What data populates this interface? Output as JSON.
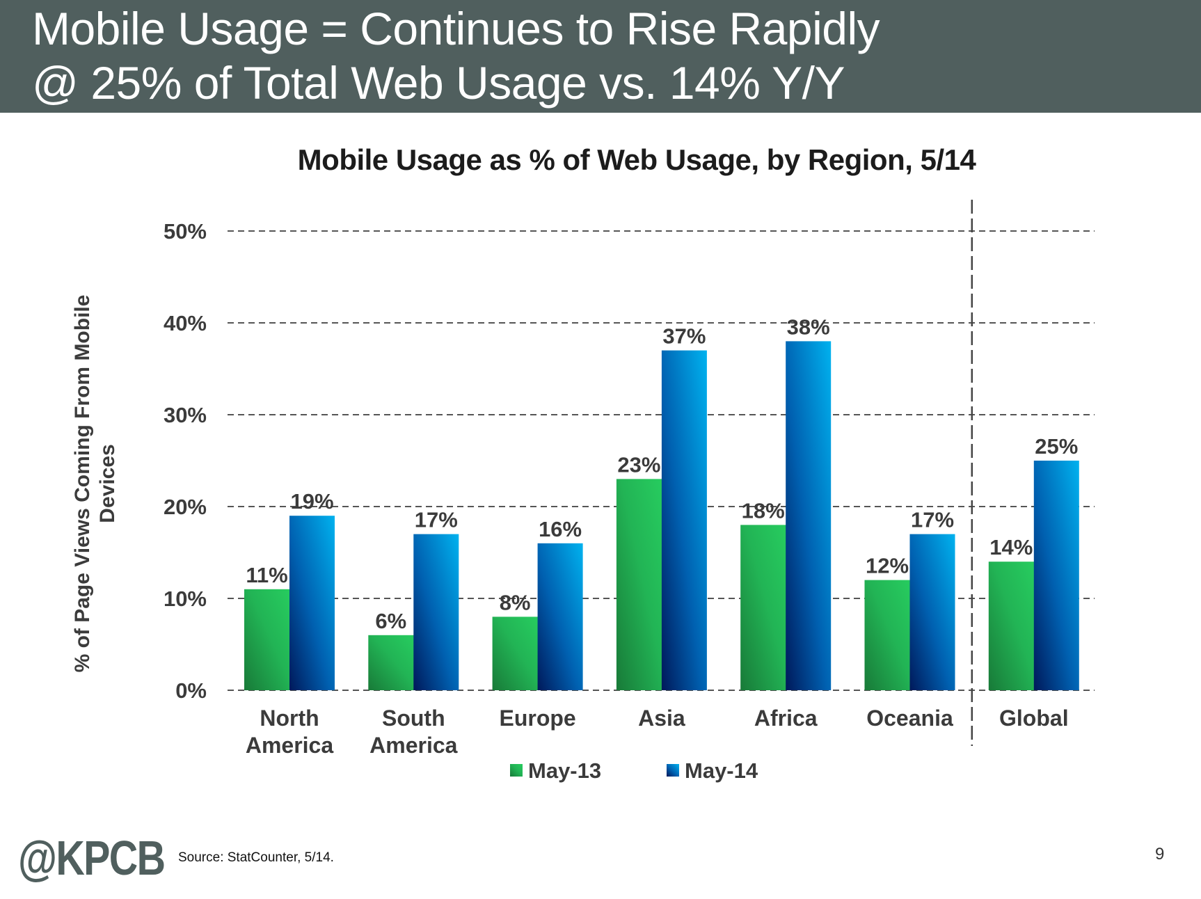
{
  "header": {
    "line1": "Mobile Usage = Continues to Rise Rapidly",
    "line2": "@ 25% of Total Web Usage vs. 14% Y/Y"
  },
  "footer": {
    "logo": "@KPCB",
    "source": "Source: StatCounter, 5/14.",
    "page_number": "9"
  },
  "colors": {
    "header_bg": "#505f5e",
    "may13_dark": "#187a38",
    "may13_light": "#27cc5f",
    "may14_dark": "#00195a",
    "may14_mid": "#0070c0",
    "may14_light": "#00b2ef",
    "text": "#3b3b3b"
  },
  "chart_data": {
    "type": "bar",
    "title": "Mobile Usage as % of Web Usage, by Region, 5/14",
    "xlabel": "",
    "ylabel": "% of Page Views Coming From Mobile Devices",
    "ylabel_lines": [
      "% of Page Views Coming From Mobile",
      "Devices"
    ],
    "categories": [
      "North America",
      "South America",
      "Europe",
      "Asia",
      "Africa",
      "Oceania",
      "Global"
    ],
    "category_lines": [
      [
        "North",
        "America"
      ],
      [
        "South",
        "America"
      ],
      [
        "Europe"
      ],
      [
        "Asia"
      ],
      [
        "Africa"
      ],
      [
        "Oceania"
      ],
      [
        "Global"
      ]
    ],
    "series": [
      {
        "name": "May-13",
        "values": [
          11,
          6,
          8,
          23,
          18,
          12,
          14
        ],
        "labels": [
          "11%",
          "6%",
          "8%",
          "23%",
          "18%",
          "12%",
          "14%"
        ]
      },
      {
        "name": "May-14",
        "values": [
          19,
          17,
          16,
          37,
          38,
          17,
          25
        ],
        "labels": [
          "19%",
          "17%",
          "16%",
          "37%",
          "38%",
          "17%",
          "25%"
        ]
      }
    ],
    "ylim": [
      0,
      50
    ],
    "yticks": [
      0,
      10,
      20,
      30,
      40,
      50
    ],
    "ytick_labels": [
      "0%",
      "10%",
      "20%",
      "30%",
      "40%",
      "50%"
    ],
    "grid": "horizontal dashed",
    "separator_before_category": "Global",
    "legend": {
      "placement": "bottom",
      "entries": [
        "May-13",
        "May-14"
      ]
    }
  }
}
